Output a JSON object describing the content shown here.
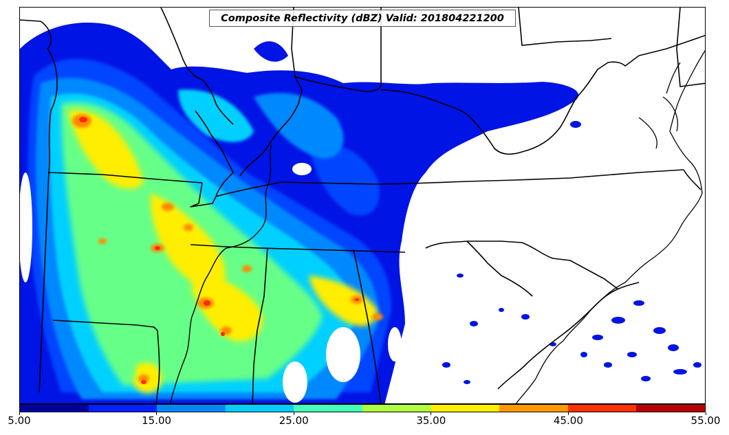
{
  "title": "Composite Reflectivity (dBZ) Valid: 201804221200",
  "colorbar": {
    "colors": [
      "#0000a0",
      "#0022ff",
      "#0088ff",
      "#00d0ff",
      "#44ffbb",
      "#b0ff40",
      "#ffee00",
      "#ff9900",
      "#ff3300",
      "#b80000"
    ],
    "tick_labels": [
      "5.00",
      "15.00",
      "25.00",
      "35.00",
      "45.00",
      "55.00"
    ]
  }
}
